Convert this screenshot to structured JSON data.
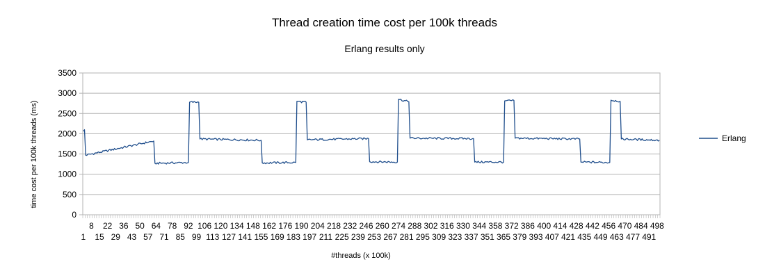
{
  "chart_data": {
    "type": "line",
    "title": "Thread creation time cost per 100k threads",
    "subtitle": "Erlang results only",
    "xlabel": "#threads (x 100k)",
    "ylabel": "time cost per 100k threads (ms)",
    "ylim": [
      0,
      3500
    ],
    "yticks": [
      0,
      500,
      1000,
      1500,
      2000,
      2500,
      3000,
      3500
    ],
    "x_range": [
      1,
      500
    ],
    "x_tick_labels_upper": [
      "8",
      "22",
      "36",
      "50",
      "64",
      "78",
      "92",
      "106",
      "120",
      "134",
      "148",
      "162",
      "176",
      "190",
      "204",
      "218",
      "232",
      "246",
      "260",
      "274",
      "288",
      "302",
      "316",
      "330",
      "344",
      "358",
      "372",
      "386",
      "400",
      "414",
      "428",
      "442",
      "456",
      "470",
      "484",
      "498"
    ],
    "x_tick_labels_lower": [
      "1",
      "15",
      "29",
      "43",
      "57",
      "71",
      "85",
      "99",
      "113",
      "127",
      "141",
      "155",
      "169",
      "183",
      "197",
      "211",
      "225",
      "239",
      "253",
      "267",
      "281",
      "295",
      "309",
      "323",
      "337",
      "351",
      "365",
      "379",
      "393",
      "407",
      "421",
      "435",
      "449",
      "463",
      "477",
      "491"
    ],
    "grid": "horizontal",
    "legend_position": "right",
    "series": [
      {
        "name": "Erlang",
        "color": "#1f4e8c",
        "segments": [
          {
            "x_start": 1,
            "x_end": 2,
            "start": 2060,
            "end": 2100
          },
          {
            "x_start": 3,
            "x_end": 62,
            "start": 1470,
            "end": 1820
          },
          {
            "x_start": 63,
            "x_end": 92,
            "start": 1270,
            "end": 1290
          },
          {
            "x_start": 93,
            "x_end": 101,
            "start": 2780,
            "end": 2780
          },
          {
            "x_start": 102,
            "x_end": 155,
            "start": 1870,
            "end": 1840
          },
          {
            "x_start": 156,
            "x_end": 185,
            "start": 1280,
            "end": 1290
          },
          {
            "x_start": 186,
            "x_end": 194,
            "start": 2800,
            "end": 2780
          },
          {
            "x_start": 195,
            "x_end": 248,
            "start": 1850,
            "end": 1880
          },
          {
            "x_start": 249,
            "x_end": 273,
            "start": 1310,
            "end": 1300
          },
          {
            "x_start": 274,
            "x_end": 283,
            "start": 2850,
            "end": 2790
          },
          {
            "x_start": 284,
            "x_end": 339,
            "start": 1890,
            "end": 1880
          },
          {
            "x_start": 340,
            "x_end": 365,
            "start": 1300,
            "end": 1300
          },
          {
            "x_start": 366,
            "x_end": 374,
            "start": 2810,
            "end": 2820
          },
          {
            "x_start": 375,
            "x_end": 431,
            "start": 1890,
            "end": 1870
          },
          {
            "x_start": 432,
            "x_end": 457,
            "start": 1300,
            "end": 1290
          },
          {
            "x_start": 458,
            "x_end": 466,
            "start": 2830,
            "end": 2800
          },
          {
            "x_start": 467,
            "x_end": 500,
            "start": 1870,
            "end": 1840
          }
        ]
      }
    ]
  }
}
